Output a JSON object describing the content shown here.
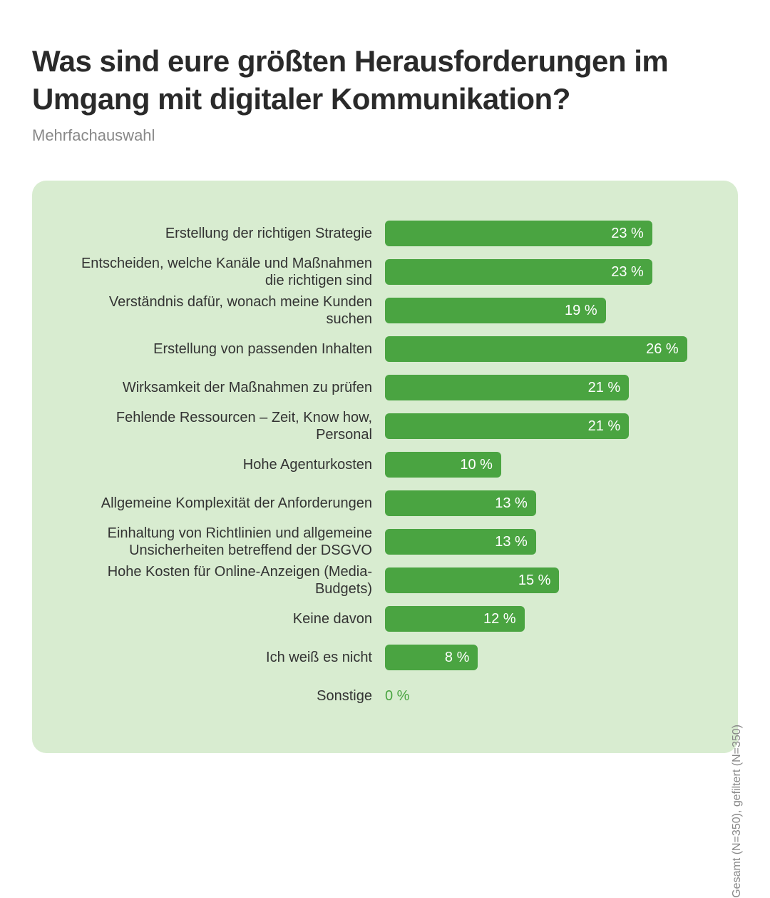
{
  "title": "Was sind eure größten Herausforderungen im Umgang mit digitaler Kommunikation?",
  "subtitle": "Mehrfachauswahl",
  "sideNote": "Gesamt (N=350), gefiltert (N=350)",
  "chart": {
    "type": "bar-horizontal",
    "backgroundColor": "#d8ecd0",
    "barColor": "#4aa441",
    "barValueTextColor": "#ffffff",
    "zeroValueTextColor": "#4aa441",
    "labelTextColor": "#333333",
    "titleTextColor": "#2a2a2a",
    "subtitleTextColor": "#888888",
    "barHeight": 36,
    "barRadius": 6,
    "maxValue": 27,
    "barAreaWidthPx": 440,
    "items": [
      {
        "label": "Erstellung der richtigen Strategie",
        "value": 23,
        "display": "23 %"
      },
      {
        "label": "Entscheiden, welche Kanäle und Maßnahmen die richtigen sind",
        "value": 23,
        "display": "23 %"
      },
      {
        "label": "Verständnis dafür, wonach meine Kunden suchen",
        "value": 19,
        "display": "19 %"
      },
      {
        "label": "Erstellung von passenden Inhalten",
        "value": 26,
        "display": "26 %"
      },
      {
        "label": "Wirksamkeit der Maßnahmen zu prüfen",
        "value": 21,
        "display": "21 %"
      },
      {
        "label": "Fehlende Ressourcen – Zeit, Know how, Personal",
        "value": 21,
        "display": "21 %"
      },
      {
        "label": "Hohe Agenturkosten",
        "value": 10,
        "display": "10 %"
      },
      {
        "label": "Allgemeine Komplexität der Anforderungen",
        "value": 13,
        "display": "13 %"
      },
      {
        "label": "Einhaltung von Richtlinien und allgemeine Unsicherheiten betreffend der DSGVO",
        "value": 13,
        "display": "13 %"
      },
      {
        "label": "Hohe Kosten für Online-Anzeigen (Media-Budgets)",
        "value": 15,
        "display": "15 %"
      },
      {
        "label": "Keine davon",
        "value": 12,
        "display": "12 %"
      },
      {
        "label": "Ich weiß es nicht",
        "value": 8,
        "display": "8 %"
      },
      {
        "label": "Sonstige",
        "value": 0,
        "display": "0 %"
      }
    ]
  }
}
